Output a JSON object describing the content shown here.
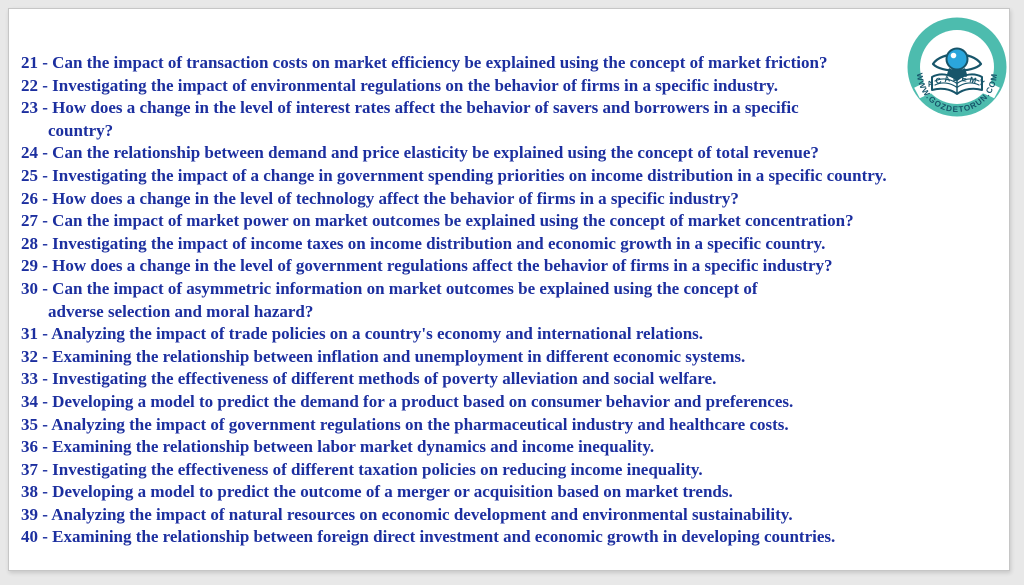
{
  "page": {
    "background_color": "#e8e8e8",
    "panel_color": "#ffffff",
    "text_color": "#1c2f9f"
  },
  "list": {
    "separator": " - ",
    "items": [
      {
        "num": "21",
        "lines": [
          "Can the impact of transaction costs on market efficiency be explained using the concept of market friction?"
        ]
      },
      {
        "num": "22",
        "lines": [
          "Investigating the impact of environmental regulations on the behavior of firms in a specific industry."
        ]
      },
      {
        "num": "23",
        "lines": [
          "How does a change in the level of interest rates affect the behavior of savers and borrowers in a specific",
          "country?"
        ]
      },
      {
        "num": "24",
        "lines": [
          "Can the relationship between demand and price elasticity be explained using the concept of total revenue?"
        ]
      },
      {
        "num": "25",
        "lines": [
          "Investigating the impact of a change in government spending priorities on income distribution in a specific country."
        ]
      },
      {
        "num": "26",
        "lines": [
          "How does a change in the level of technology affect the behavior of firms in a specific industry?"
        ]
      },
      {
        "num": "27",
        "lines": [
          "Can the impact of market power on market outcomes be explained using the concept of market concentration?"
        ]
      },
      {
        "num": "28",
        "lines": [
          "Investigating the impact of income taxes on income distribution and economic growth in a specific country."
        ]
      },
      {
        "num": "29",
        "lines": [
          "How does a change in the level of government regulations affect the behavior of firms in a specific industry?"
        ]
      },
      {
        "num": "30",
        "lines": [
          "Can the impact of asymmetric information on market outcomes be explained using the concept of",
          "adverse selection and moral hazard?"
        ]
      },
      {
        "num": "31",
        "lines": [
          "Analyzing the impact of trade policies on a country's economy and international relations."
        ]
      },
      {
        "num": "32",
        "lines": [
          "Examining the relationship between inflation and unemployment in different economic systems."
        ]
      },
      {
        "num": "33",
        "lines": [
          "Investigating the effectiveness of different methods of poverty alleviation and social welfare."
        ]
      },
      {
        "num": "34",
        "lines": [
          "Developing a model to predict the demand for a product based on consumer behavior and preferences."
        ]
      },
      {
        "num": "35",
        "lines": [
          "Analyzing the impact of government regulations on the pharmaceutical industry and healthcare costs."
        ]
      },
      {
        "num": "36",
        "lines": [
          "Examining the relationship between labor market dynamics and income inequality."
        ]
      },
      {
        "num": "37",
        "lines": [
          "Investigating the effectiveness of different taxation policies on reducing income inequality."
        ]
      },
      {
        "num": "38",
        "lines": [
          "Developing a model to predict the outcome of a merger or acquisition based on market trends."
        ]
      },
      {
        "num": "39",
        "lines": [
          "Analyzing the impact of natural resources on economic development and environmental sustainability."
        ]
      },
      {
        "num": "40",
        "lines": [
          "Examining the relationship between foreign direct investment and economic growth in developing countries."
        ]
      }
    ]
  },
  "logo": {
    "top_text": "WWW.GOZDETORUN.COM",
    "bottom_text": "ACADEMY",
    "ring_color": "#4dbcae",
    "art_color": "#17556a",
    "iris_color": "#2ba6dc"
  }
}
